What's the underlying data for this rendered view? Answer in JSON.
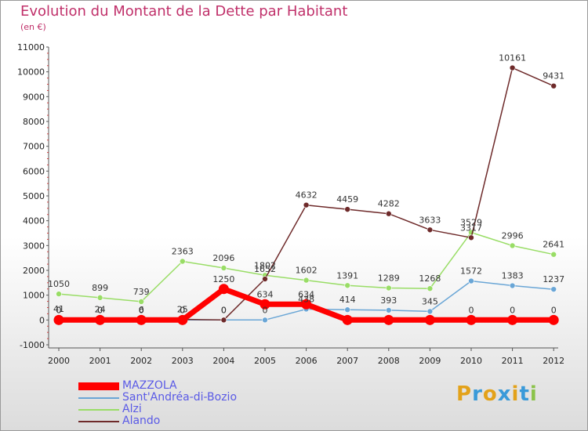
{
  "header": {
    "title": "Evolution du Montant de la Dette par Habitant",
    "unit": "(en €)"
  },
  "brand": {
    "logo_letters": [
      "P",
      "r",
      "o",
      "x",
      "i",
      "t",
      "i"
    ],
    "logo_colors": [
      "#e3a21a",
      "#3a9ad9",
      "#e3a21a",
      "#3a9ad9",
      "#e3a21a",
      "#3a9ad9",
      "#8bc34a"
    ]
  },
  "chart_data": {
    "type": "line",
    "xlabel": "",
    "ylabel": "",
    "ylim": [
      -1000,
      11000
    ],
    "yticks": [
      -1000,
      0,
      1000,
      2000,
      3000,
      4000,
      5000,
      6000,
      7000,
      8000,
      9000,
      10000,
      11000
    ],
    "x": [
      "2000",
      "2001",
      "2002",
      "2003",
      "2004",
      "2005",
      "2006",
      "2007",
      "2008",
      "2009",
      "2010",
      "2011",
      "2012"
    ],
    "grid": false,
    "legend_position": "bottom-left",
    "series": [
      {
        "name": "Alzi",
        "color": "#99dd66",
        "values": [
          1050,
          899,
          739,
          2363,
          2096,
          1802,
          1602,
          1391,
          1289,
          1268,
          3529,
          2996,
          2641
        ],
        "labels": [
          "1050",
          "899",
          "739",
          "2363",
          "2096",
          "1802",
          "1602",
          "1391",
          "1289",
          "1268",
          "3529",
          "2996",
          "2641"
        ]
      },
      {
        "name": "Sant'Andréa-di-Bozio",
        "color": "#6aa6d6",
        "values": [
          0,
          0,
          0,
          0,
          0,
          0,
          438,
          414,
          393,
          345,
          1572,
          1383,
          1237
        ],
        "labels": [
          "0",
          "0",
          "0",
          "0",
          "0",
          "0",
          "438",
          "414",
          "393",
          "345",
          "1572",
          "1383",
          "1237"
        ]
      },
      {
        "name": "Alando",
        "color": "#6e2a2a",
        "values": [
          41,
          24,
          6,
          25,
          0,
          1652,
          4632,
          4459,
          4282,
          3633,
          3317,
          10161,
          9431
        ],
        "labels": [
          "41",
          "24",
          "6",
          "25",
          "0",
          "1652",
          "4632",
          "4459",
          "4282",
          "3633",
          "3317",
          "10161",
          "9431"
        ]
      },
      {
        "name": "MAZZOLA",
        "color": "#ff0000",
        "values": [
          0,
          0,
          0,
          0,
          1250,
          634,
          634,
          0,
          0,
          0,
          0,
          0,
          0
        ],
        "labels": [
          "0",
          "0",
          "0",
          "0",
          "1250",
          "634",
          "634",
          "",
          "",
          "",
          "0",
          "0",
          "0"
        ]
      }
    ],
    "legend_order": [
      "MAZZOLA",
      "Sant'Andréa-di-Bozio",
      "Alzi",
      "Alando"
    ]
  }
}
